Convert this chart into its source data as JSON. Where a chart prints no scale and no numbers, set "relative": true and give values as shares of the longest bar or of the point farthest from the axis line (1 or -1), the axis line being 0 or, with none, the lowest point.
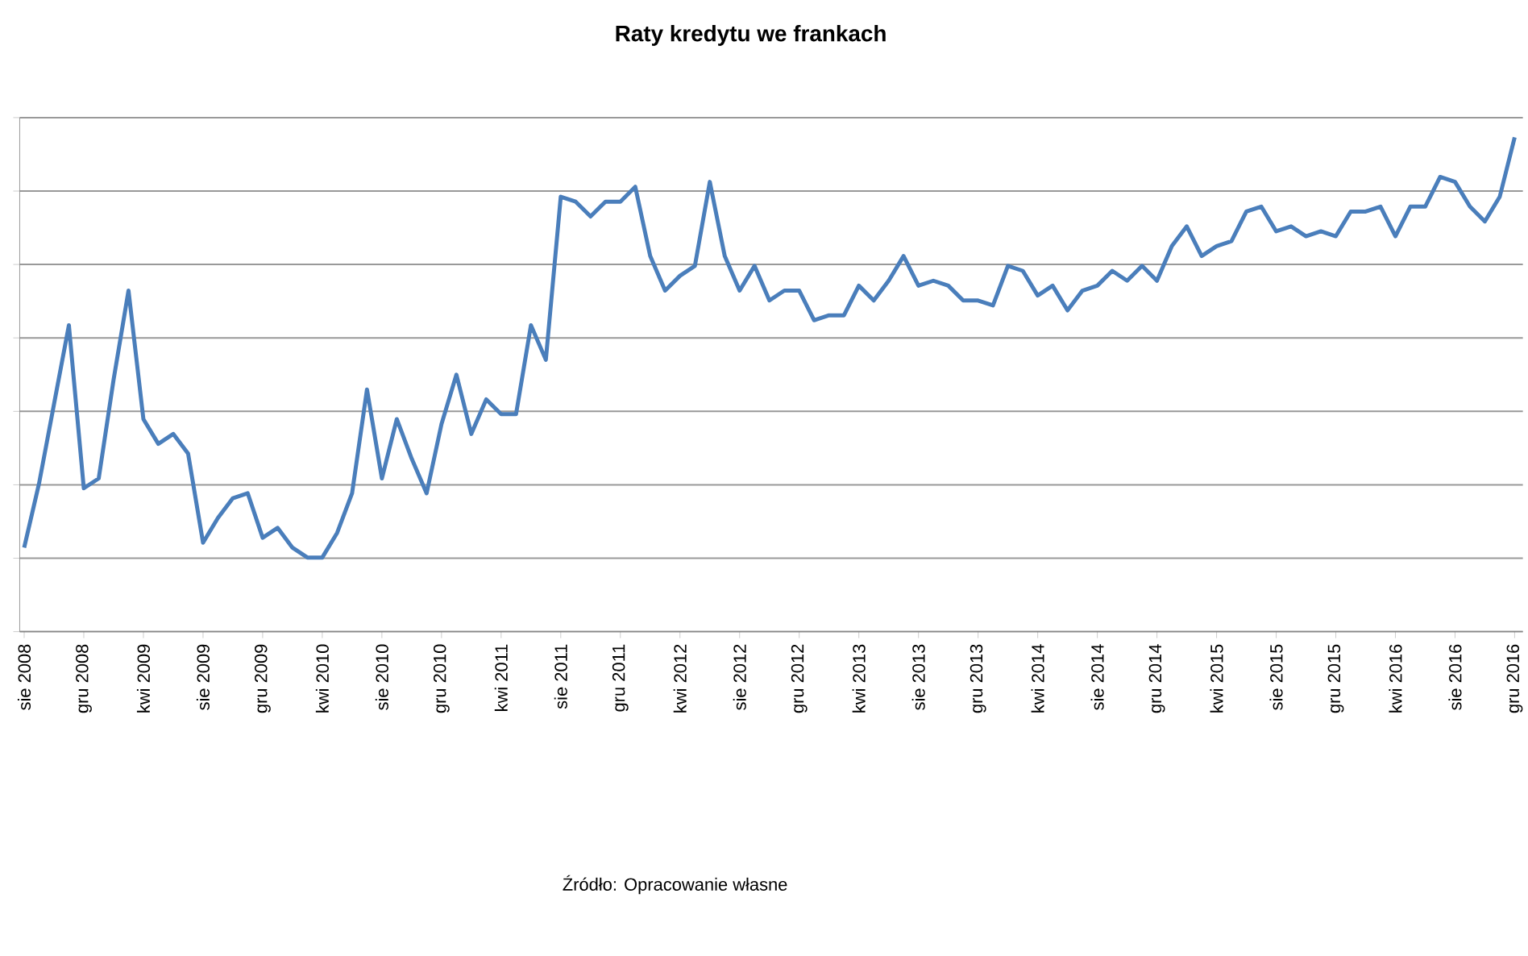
{
  "chart_data": {
    "type": "line",
    "title": "Raty kredytu we frankach",
    "relative": true,
    "grid": "y",
    "color": "#4a7ebb",
    "marker": "none",
    "line_style": "solid",
    "categories": [
      "sie 2008",
      null,
      null,
      null,
      "gru 2008",
      null,
      null,
      null,
      "kwi 2009",
      null,
      null,
      null,
      "sie 2009",
      null,
      null,
      null,
      "gru 2009",
      null,
      null,
      null,
      "kwi 2010",
      null,
      null,
      null,
      "sie 2010",
      null,
      null,
      null,
      "gru 2010",
      null,
      null,
      null,
      "kwi 2011",
      null,
      null,
      null,
      "sie 2011",
      null,
      null,
      null,
      "gru 2011",
      null,
      null,
      null,
      "kwi 2012",
      null,
      null,
      null,
      "sie 2012",
      null,
      null,
      null,
      "gru 2012",
      null,
      null,
      null,
      "kwi 2013",
      null,
      null,
      null,
      "sie 2013",
      null,
      null,
      null,
      "gru 2013",
      null,
      null,
      null,
      "kwi 2014",
      null,
      null,
      null,
      "sie 2014",
      null,
      null,
      null,
      "gru 2014",
      null,
      null,
      null,
      "kwi 2015",
      null,
      null,
      null,
      "sie 2015",
      null,
      null,
      null,
      "gru 2015",
      null,
      null,
      null,
      "kwi 2016",
      null,
      null,
      null,
      "sie 2016",
      null,
      null,
      null,
      "gru 2016"
    ],
    "values": [
      0.17,
      0.3,
      0.46,
      0.62,
      0.29,
      0.31,
      0.51,
      0.69,
      0.43,
      0.38,
      0.4,
      0.36,
      0.18,
      0.23,
      0.27,
      0.28,
      0.19,
      0.21,
      0.17,
      0.15,
      0.15,
      0.2,
      0.28,
      0.49,
      0.31,
      0.43,
      0.35,
      0.28,
      0.42,
      0.52,
      0.4,
      0.47,
      0.44,
      0.44,
      0.62,
      0.55,
      0.88,
      0.87,
      0.84,
      0.87,
      0.87,
      0.9,
      0.76,
      0.69,
      0.72,
      0.74,
      0.91,
      0.76,
      0.69,
      0.74,
      0.67,
      0.69,
      0.69,
      0.63,
      0.64,
      0.64,
      0.7,
      0.67,
      0.71,
      0.76,
      0.7,
      0.71,
      0.7,
      0.67,
      0.67,
      0.66,
      0.74,
      0.73,
      0.68,
      0.7,
      0.65,
      0.69,
      0.7,
      0.73,
      0.71,
      0.74,
      0.71,
      0.78,
      0.82,
      0.76,
      0.78,
      0.79,
      0.85,
      0.86,
      0.81,
      0.82,
      0.8,
      0.81,
      0.8,
      0.85,
      0.85,
      0.86,
      0.8,
      0.86,
      0.86,
      0.92,
      0.91,
      0.86,
      0.83,
      0.88,
      1
    ],
    "annotations": [
      "Źródło: Opracowanie własne"
    ]
  }
}
